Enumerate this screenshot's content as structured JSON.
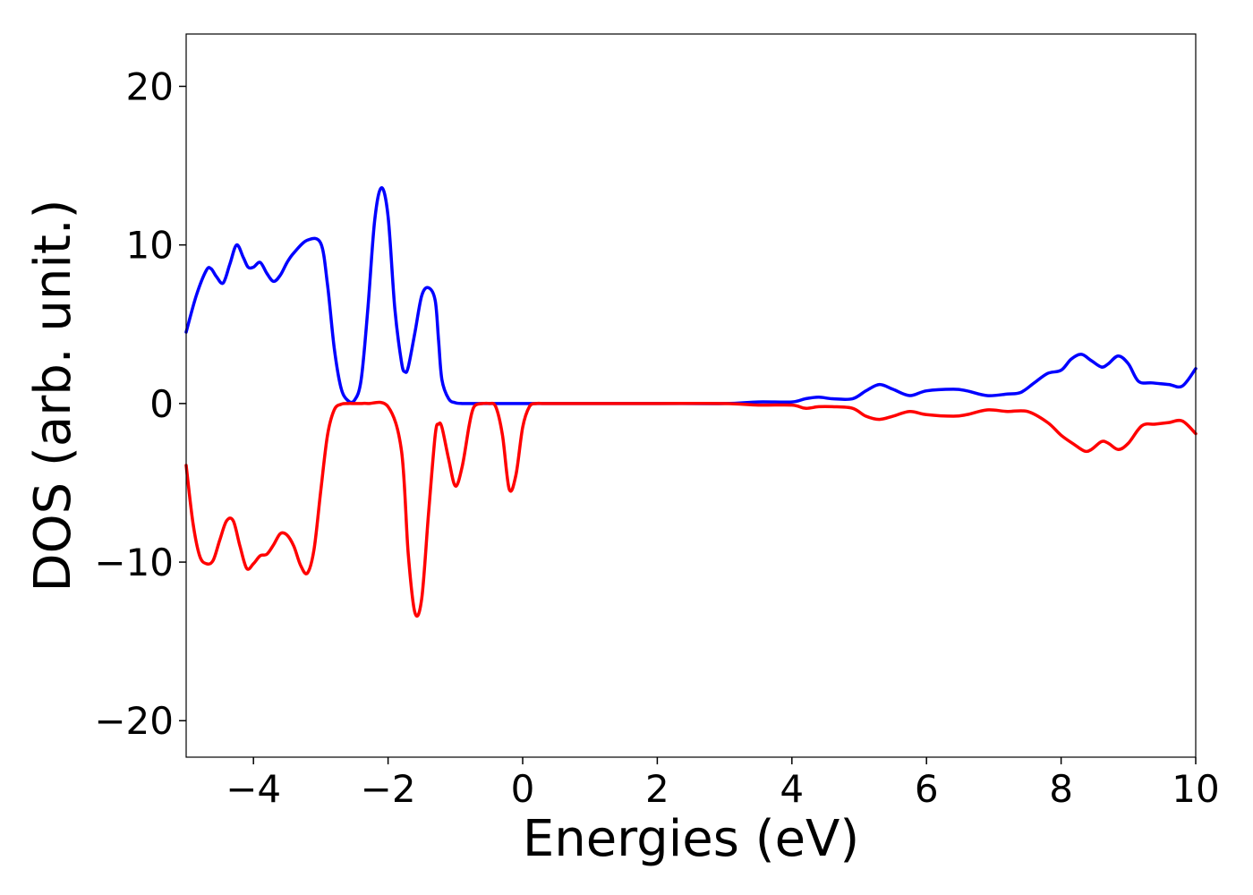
{
  "chart_data": {
    "type": "line",
    "xlabel": "Energies (eV)",
    "ylabel": "DOS (arb. unit.)",
    "xlim": [
      -5,
      10
    ],
    "ylim": [
      -22.3,
      23.3
    ],
    "xticks": [
      -4,
      -2,
      0,
      2,
      4,
      6,
      8,
      10
    ],
    "xtick_labels": [
      "−4",
      "−2",
      "0",
      "2",
      "4",
      "6",
      "8",
      "10"
    ],
    "yticks": [
      20,
      10,
      0,
      -10,
      -20
    ],
    "ytick_labels": [
      "20",
      "10",
      "0",
      "−10",
      "−20"
    ],
    "grid": false,
    "legend": "none",
    "series": [
      {
        "color": "#0000ff",
        "x": [
          -5.0,
          -4.85,
          -4.7,
          -4.63,
          -4.55,
          -4.45,
          -4.35,
          -4.25,
          -4.15,
          -4.08,
          -4.0,
          -3.9,
          -3.8,
          -3.7,
          -3.6,
          -3.5,
          -3.4,
          -3.2,
          -3.0,
          -2.9,
          -2.8,
          -2.7,
          -2.6,
          -2.5,
          -2.4,
          -2.3,
          -2.2,
          -2.1,
          -2.0,
          -1.9,
          -1.8,
          -1.75,
          -1.7,
          -1.6,
          -1.5,
          -1.4,
          -1.3,
          -1.25,
          -1.2,
          -1.1,
          -1.0,
          -0.9,
          -0.83,
          -0.75,
          -0.65,
          -0.55,
          -0.45,
          -0.35,
          -0.25,
          -0.1,
          0.0,
          0.5,
          1.0,
          2.0,
          3.0,
          3.5,
          4.0,
          4.2,
          4.4,
          4.6,
          4.9,
          5.1,
          5.3,
          5.5,
          5.75,
          6.0,
          6.4,
          6.6,
          6.9,
          7.2,
          7.4,
          7.6,
          7.8,
          8.0,
          8.15,
          8.3,
          8.45,
          8.6,
          8.7,
          8.85,
          9.0,
          9.15,
          9.35,
          9.6,
          9.8,
          10.0
        ],
        "y": [
          4.5,
          6.8,
          8.4,
          8.5,
          8.0,
          7.6,
          8.8,
          10.0,
          9.2,
          8.6,
          8.6,
          8.9,
          8.2,
          7.7,
          8.1,
          8.9,
          9.5,
          10.3,
          10.1,
          7.5,
          3.5,
          1.0,
          0.2,
          0.2,
          1.5,
          6.0,
          11.5,
          13.6,
          11.8,
          6.0,
          2.6,
          2.0,
          2.3,
          4.5,
          6.8,
          7.3,
          6.5,
          4.0,
          1.5,
          0.3,
          0.05,
          0.0,
          0.0,
          0.0,
          0.0,
          0.0,
          0.0,
          0.0,
          0.0,
          0.0,
          0.0,
          0.0,
          0.0,
          0.0,
          0.0,
          0.1,
          0.1,
          0.3,
          0.4,
          0.3,
          0.3,
          0.8,
          1.2,
          0.9,
          0.5,
          0.8,
          0.9,
          0.8,
          0.5,
          0.6,
          0.7,
          1.3,
          1.9,
          2.1,
          2.8,
          3.1,
          2.7,
          2.3,
          2.5,
          3.0,
          2.5,
          1.4,
          1.3,
          1.2,
          1.1,
          2.2
        ]
      },
      {
        "color": "#ff0000",
        "x": [
          -5.0,
          -4.9,
          -4.8,
          -4.7,
          -4.6,
          -4.5,
          -4.4,
          -4.3,
          -4.2,
          -4.1,
          -4.0,
          -3.9,
          -3.8,
          -3.7,
          -3.6,
          -3.5,
          -3.4,
          -3.3,
          -3.2,
          -3.1,
          -3.0,
          -2.9,
          -2.8,
          -2.7,
          -2.6,
          -2.5,
          -2.4,
          -2.3,
          -2.0,
          -1.8,
          -1.7,
          -1.6,
          -1.5,
          -1.4,
          -1.3,
          -1.25,
          -1.2,
          -1.1,
          -1.0,
          -0.9,
          -0.8,
          -0.75,
          -0.7,
          -0.6,
          -0.5,
          -0.4,
          -0.3,
          -0.2,
          -0.1,
          0.0,
          0.1,
          0.2,
          0.3,
          0.4,
          0.5,
          0.55,
          0.6,
          0.7,
          0.8,
          0.9,
          1.0,
          2.0,
          3.0,
          3.5,
          4.0,
          4.2,
          4.4,
          4.6,
          4.9,
          5.1,
          5.3,
          5.5,
          5.75,
          6.0,
          6.4,
          6.6,
          6.9,
          7.2,
          7.5,
          7.8,
          8.0,
          8.2,
          8.35,
          8.45,
          8.6,
          8.7,
          8.85,
          9.0,
          9.2,
          9.4,
          9.6,
          9.8,
          10.0
        ],
        "y": [
          -3.9,
          -7.5,
          -9.6,
          -10.1,
          -9.9,
          -8.6,
          -7.4,
          -7.4,
          -9.0,
          -10.4,
          -10.1,
          -9.6,
          -9.5,
          -8.9,
          -8.2,
          -8.3,
          -9.0,
          -10.2,
          -10.7,
          -9.2,
          -5.5,
          -2.0,
          -0.4,
          -0.05,
          0.0,
          0.0,
          0.0,
          0.0,
          -0.2,
          -3.0,
          -9.5,
          -13.2,
          -12.3,
          -7.0,
          -2.0,
          -1.3,
          -1.5,
          -3.5,
          -5.2,
          -4.0,
          -1.5,
          -0.5,
          -0.1,
          0.0,
          0.0,
          -0.2,
          -2.0,
          -5.4,
          -4.5,
          -1.5,
          -0.2,
          0.0,
          0.0,
          0.0,
          0.0,
          0.0,
          0.0,
          0.0,
          0.0,
          0.0,
          0.0,
          0.0,
          0.0,
          -0.1,
          -0.1,
          -0.3,
          -0.2,
          -0.2,
          -0.3,
          -0.8,
          -1.0,
          -0.8,
          -0.5,
          -0.7,
          -0.8,
          -0.7,
          -0.4,
          -0.5,
          -0.5,
          -1.2,
          -2.0,
          -2.6,
          -3.0,
          -2.9,
          -2.4,
          -2.5,
          -2.9,
          -2.5,
          -1.4,
          -1.3,
          -1.2,
          -1.1,
          -1.9
        ]
      }
    ]
  }
}
